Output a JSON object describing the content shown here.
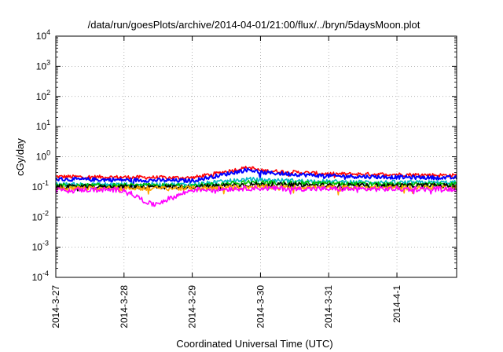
{
  "chart_data": {
    "type": "line",
    "title": "/data/run/goesPlots/archive/2014-04-01/21:00/flux/../bryn/5daysMoon.plot",
    "xlabel": "Coordinated Universal Time (UTC)",
    "ylabel": "cGy/day",
    "y_scale": "log",
    "ylim": [
      0.0001,
      10000
    ],
    "y_ticks": [
      {
        "base": "10",
        "exp": "-4"
      },
      {
        "base": "10",
        "exp": "-3"
      },
      {
        "base": "10",
        "exp": "-2"
      },
      {
        "base": "10",
        "exp": "-1"
      },
      {
        "base": "10",
        "exp": "0"
      },
      {
        "base": "10",
        "exp": "1"
      },
      {
        "base": "10",
        "exp": "2"
      },
      {
        "base": "10",
        "exp": "3"
      },
      {
        "base": "10",
        "exp": "4"
      }
    ],
    "x_ticks": [
      "2014-3-27",
      "2014-3-28",
      "2014-3-29",
      "2014-3-30",
      "2014-3-31",
      "2014-4-1"
    ],
    "xlim": [
      "2014-03-27T00:00",
      "2014-04-01T21:00"
    ],
    "grid": true,
    "series": [
      {
        "color": "#ff0000",
        "x": [
          "2014-03-27T00:00",
          "2014-03-28T00:00",
          "2014-03-29T00:00",
          "2014-03-29T20:00",
          "2014-03-30T00:00",
          "2014-03-31T00:00",
          "2014-04-01T00:00",
          "2014-04-01T21:00"
        ],
        "values": [
          0.22,
          0.21,
          0.2,
          0.45,
          0.35,
          0.27,
          0.26,
          0.24
        ]
      },
      {
        "color": "#0000ff",
        "x": [
          "2014-03-27T00:00",
          "2014-03-28T00:00",
          "2014-03-29T00:00",
          "2014-03-29T20:00",
          "2014-03-30T00:00",
          "2014-03-31T00:00",
          "2014-04-01T00:00",
          "2014-04-01T21:00"
        ],
        "values": [
          0.18,
          0.17,
          0.16,
          0.38,
          0.3,
          0.23,
          0.21,
          0.2
        ]
      },
      {
        "color": "#00b7c3",
        "x": [
          "2014-03-27T00:00",
          "2014-03-28T00:00",
          "2014-03-29T00:00",
          "2014-03-29T20:00",
          "2014-03-30T00:00",
          "2014-03-31T00:00",
          "2014-04-01T00:00",
          "2014-04-01T21:00"
        ],
        "values": [
          0.12,
          0.12,
          0.12,
          0.18,
          0.17,
          0.15,
          0.14,
          0.14
        ]
      },
      {
        "color": "#00c000",
        "x": [
          "2014-03-27T00:00",
          "2014-03-28T00:00",
          "2014-03-29T00:00",
          "2014-03-29T20:00",
          "2014-03-30T00:00",
          "2014-03-31T00:00",
          "2014-04-01T00:00",
          "2014-04-01T21:00"
        ],
        "values": [
          0.11,
          0.11,
          0.11,
          0.14,
          0.14,
          0.13,
          0.12,
          0.12
        ]
      },
      {
        "color": "#000000",
        "x": [
          "2014-03-27T00:00",
          "2014-03-28T00:00",
          "2014-03-29T00:00",
          "2014-03-29T20:00",
          "2014-03-30T00:00",
          "2014-03-31T00:00",
          "2014-04-01T00:00",
          "2014-04-01T21:00"
        ],
        "values": [
          0.1,
          0.1,
          0.1,
          0.12,
          0.12,
          0.11,
          0.11,
          0.11
        ]
      },
      {
        "color": "#ffa500",
        "x": [
          "2014-03-27T00:00",
          "2014-03-28T00:00",
          "2014-03-29T00:00",
          "2014-03-29T20:00",
          "2014-03-30T00:00",
          "2014-03-31T00:00",
          "2014-04-01T00:00",
          "2014-04-01T21:00"
        ],
        "values": [
          0.09,
          0.09,
          0.09,
          0.1,
          0.1,
          0.095,
          0.095,
          0.095
        ]
      },
      {
        "color": "#ff00ff",
        "x": [
          "2014-03-27T00:00",
          "2014-03-28T00:00",
          "2014-03-28T10:00",
          "2014-03-29T00:00",
          "2014-03-29T20:00",
          "2014-03-30T00:00",
          "2014-03-31T00:00",
          "2014-04-01T00:00",
          "2014-04-01T21:00"
        ],
        "values": [
          0.08,
          0.08,
          0.025,
          0.08,
          0.09,
          0.09,
          0.085,
          0.085,
          0.085
        ]
      }
    ]
  }
}
